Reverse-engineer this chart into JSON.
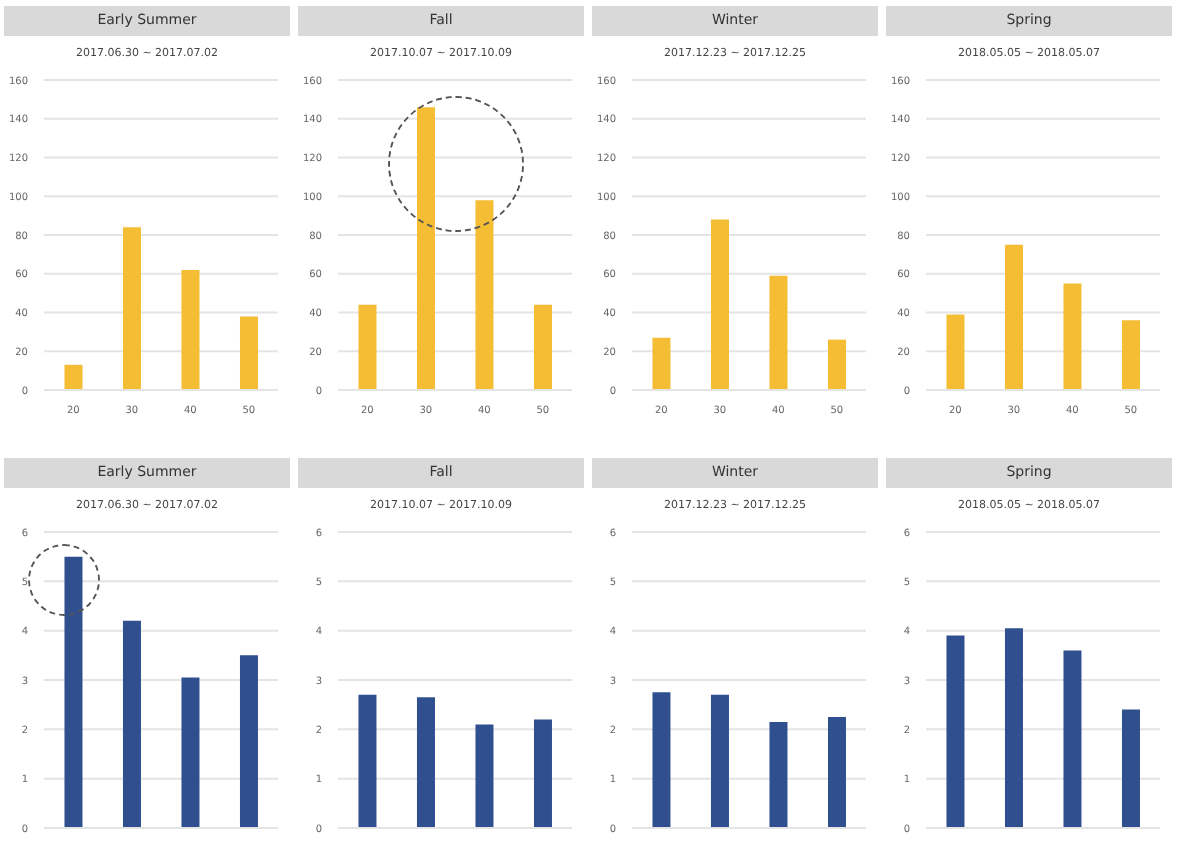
{
  "chart_data": [
    {
      "type": "bar",
      "title": "Early Summer",
      "subtitle": "2017.06.30 ~ 2017.07.02",
      "categories": [
        "20",
        "30",
        "40",
        "50"
      ],
      "values": [
        13,
        84,
        62,
        38
      ],
      "color": "#f4bd34",
      "ylim": [
        0,
        160
      ],
      "yticks": [
        0,
        20,
        40,
        60,
        80,
        100,
        120,
        140,
        160
      ],
      "grid": "y"
    },
    {
      "type": "bar",
      "title": "Fall",
      "subtitle": "2017.10.07 ~ 2017.10.09",
      "categories": [
        "20",
        "30",
        "40",
        "50"
      ],
      "values": [
        44,
        146,
        98,
        44
      ],
      "color": "#f4bd34",
      "ylim": [
        0,
        160
      ],
      "yticks": [
        0,
        20,
        40,
        60,
        80,
        100,
        120,
        140,
        160
      ],
      "grid": "y"
    },
    {
      "type": "bar",
      "title": "Winter",
      "subtitle": "2017.12.23 ~ 2017.12.25",
      "categories": [
        "20",
        "30",
        "40",
        "50"
      ],
      "values": [
        27,
        88,
        59,
        26
      ],
      "color": "#f4bd34",
      "ylim": [
        0,
        160
      ],
      "yticks": [
        0,
        20,
        40,
        60,
        80,
        100,
        120,
        140,
        160
      ],
      "grid": "y"
    },
    {
      "type": "bar",
      "title": "Spring",
      "subtitle": "2018.05.05 ~ 2018.05.07",
      "categories": [
        "20",
        "30",
        "40",
        "50"
      ],
      "values": [
        39,
        75,
        55,
        36
      ],
      "color": "#f4bd34",
      "ylim": [
        0,
        160
      ],
      "yticks": [
        0,
        20,
        40,
        60,
        80,
        100,
        120,
        140,
        160
      ],
      "grid": "y"
    },
    {
      "type": "bar",
      "title": "Early Summer",
      "subtitle": "2017.06.30 ~ 2017.07.02",
      "categories": [
        null,
        null,
        null,
        null
      ],
      "values": [
        5.5,
        4.2,
        3.05,
        3.5
      ],
      "color": "#2f4f8f",
      "ylim": [
        0,
        6
      ],
      "yticks": [
        0,
        1,
        2,
        3,
        4,
        5,
        6
      ],
      "grid": "y"
    },
    {
      "type": "bar",
      "title": "Fall",
      "subtitle": "2017.10.07 ~ 2017.10.09",
      "categories": [
        null,
        null,
        null,
        null
      ],
      "values": [
        2.7,
        2.65,
        2.1,
        2.2
      ],
      "color": "#2f4f8f",
      "ylim": [
        0,
        6
      ],
      "yticks": [
        0,
        1,
        2,
        3,
        4,
        5,
        6
      ],
      "grid": "y"
    },
    {
      "type": "bar",
      "title": "Winter",
      "subtitle": "2017.12.23 ~ 2017.12.25",
      "categories": [
        null,
        null,
        null,
        null
      ],
      "values": [
        2.75,
        2.7,
        2.15,
        2.25
      ],
      "color": "#2f4f8f",
      "ylim": [
        0,
        6
      ],
      "yticks": [
        0,
        1,
        2,
        3,
        4,
        5,
        6
      ],
      "grid": "y"
    },
    {
      "type": "bar",
      "title": "Spring",
      "subtitle": "2018.05.05 ~ 2018.05.07",
      "categories": [
        null,
        null,
        null,
        null
      ],
      "values": [
        3.9,
        4.05,
        3.6,
        2.4
      ],
      "color": "#2f4f8f",
      "ylim": [
        0,
        6
      ],
      "yticks": [
        0,
        1,
        2,
        3,
        4,
        5,
        6
      ],
      "grid": "y"
    }
  ]
}
